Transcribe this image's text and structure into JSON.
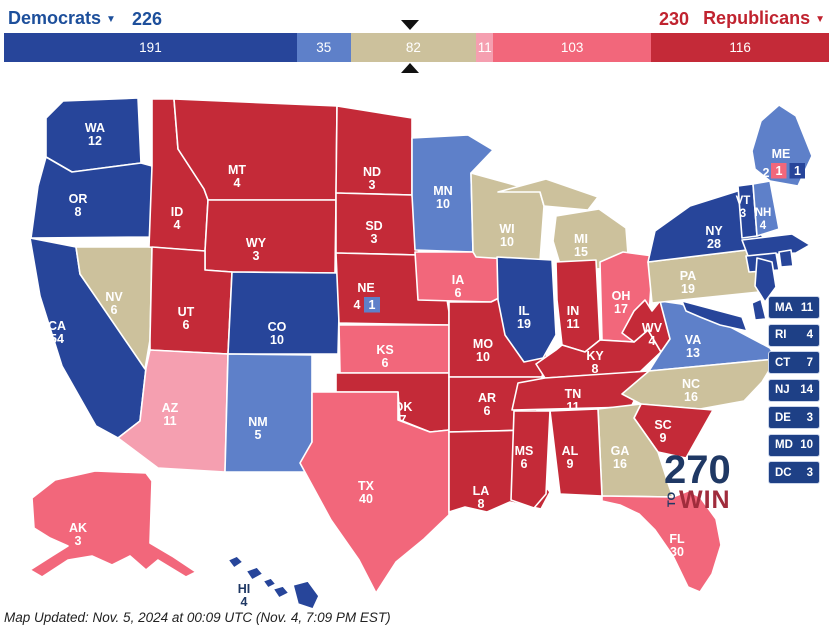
{
  "header": {
    "democrats_label": "Democrats",
    "democrats_total": "226",
    "republicans_total": "230",
    "republicans_label": "Republicans",
    "caret": "▼"
  },
  "colors": {
    "categories": {
      "safe-dem": "#27459a",
      "likely-dem": "#5e80c9",
      "tossup": "#ccc19c",
      "lean-rep": "#f59fb0",
      "likely-rep": "#f2677b",
      "safe-rep": "#c42a38"
    },
    "dem_text": "#1d4f9b",
    "rep_text": "#c0232f",
    "sidebar_box": "#1e4086",
    "sidebar_box_border": "#ccd6ea",
    "marker": "#111111",
    "state_label": "#ffffff",
    "hi_label": "#1f3864"
  },
  "bar": {
    "total": 538,
    "segments": [
      {
        "key": "safe-dem",
        "value": 191
      },
      {
        "key": "likely-dem",
        "value": 35
      },
      {
        "key": "tossup",
        "value": 82
      },
      {
        "key": "lean-rep",
        "value": 11
      },
      {
        "key": "likely-rep",
        "value": 103
      },
      {
        "key": "safe-rep",
        "value": 116
      }
    ]
  },
  "map": {
    "states": [
      {
        "abbr": "WA",
        "ev": "12",
        "category": "safe-dem"
      },
      {
        "abbr": "OR",
        "ev": "8",
        "category": "safe-dem"
      },
      {
        "abbr": "CA",
        "ev": "54",
        "category": "safe-dem"
      },
      {
        "abbr": "NV",
        "ev": "6",
        "category": "tossup"
      },
      {
        "abbr": "ID",
        "ev": "4",
        "category": "safe-rep"
      },
      {
        "abbr": "MT",
        "ev": "4",
        "category": "safe-rep"
      },
      {
        "abbr": "WY",
        "ev": "3",
        "category": "safe-rep"
      },
      {
        "abbr": "UT",
        "ev": "6",
        "category": "safe-rep"
      },
      {
        "abbr": "CO",
        "ev": "10",
        "category": "safe-dem"
      },
      {
        "abbr": "AZ",
        "ev": "11",
        "category": "lean-rep"
      },
      {
        "abbr": "NM",
        "ev": "5",
        "category": "likely-dem"
      },
      {
        "abbr": "ND",
        "ev": "3",
        "category": "safe-rep"
      },
      {
        "abbr": "SD",
        "ev": "3",
        "category": "safe-rep"
      },
      {
        "abbr": "NE",
        "ev": "4",
        "category": "safe-rep",
        "custom_ev": true
      },
      {
        "abbr": "KS",
        "ev": "6",
        "category": "likely-rep"
      },
      {
        "abbr": "OK",
        "ev": "7",
        "category": "safe-rep"
      },
      {
        "abbr": "TX",
        "ev": "40",
        "category": "likely-rep"
      },
      {
        "abbr": "MN",
        "ev": "10",
        "category": "likely-dem"
      },
      {
        "abbr": "IA",
        "ev": "6",
        "category": "likely-rep"
      },
      {
        "abbr": "MO",
        "ev": "10",
        "category": "safe-rep"
      },
      {
        "abbr": "AR",
        "ev": "6",
        "category": "safe-rep"
      },
      {
        "abbr": "LA",
        "ev": "8",
        "category": "safe-rep"
      },
      {
        "abbr": "WI",
        "ev": "10",
        "category": "tossup"
      },
      {
        "abbr": "MI",
        "ev": "15",
        "category": "tossup"
      },
      {
        "abbr": "IL",
        "ev": "19",
        "category": "safe-dem"
      },
      {
        "abbr": "IN",
        "ev": "11",
        "category": "safe-rep"
      },
      {
        "abbr": "OH",
        "ev": "17",
        "category": "likely-rep"
      },
      {
        "abbr": "KY",
        "ev": "8",
        "category": "safe-rep"
      },
      {
        "abbr": "TN",
        "ev": "11",
        "category": "safe-rep"
      },
      {
        "abbr": "WV",
        "ev": "4",
        "category": "safe-rep"
      },
      {
        "abbr": "VA",
        "ev": "13",
        "category": "likely-dem"
      },
      {
        "abbr": "NC",
        "ev": "16",
        "category": "tossup"
      },
      {
        "abbr": "SC",
        "ev": "9",
        "category": "safe-rep"
      },
      {
        "abbr": "GA",
        "ev": "16",
        "category": "tossup"
      },
      {
        "abbr": "AL",
        "ev": "9",
        "category": "safe-rep"
      },
      {
        "abbr": "MS",
        "ev": "6",
        "category": "safe-rep"
      },
      {
        "abbr": "FL",
        "ev": "30",
        "category": "likely-rep"
      },
      {
        "abbr": "PA",
        "ev": "19",
        "category": "tossup"
      },
      {
        "abbr": "NY",
        "ev": "28",
        "category": "safe-dem"
      },
      {
        "abbr": "VT",
        "ev": "3",
        "category": "safe-dem"
      },
      {
        "abbr": "NH",
        "ev": "4",
        "category": "likely-dem"
      },
      {
        "abbr": "ME",
        "ev": "2",
        "category": "likely-dem",
        "custom_ev": true
      },
      {
        "abbr": "AK",
        "ev": "3",
        "category": "likely-rep"
      },
      {
        "abbr": "HI",
        "ev": "4",
        "category": "safe-dem",
        "label_color": "hi"
      },
      {
        "abbr": "MA",
        "ev": "11",
        "category": "safe-dem",
        "show_label": false
      },
      {
        "abbr": "CT",
        "ev": "7",
        "category": "safe-dem",
        "show_label": false
      },
      {
        "abbr": "RI",
        "ev": "4",
        "category": "safe-dem",
        "show_label": false
      },
      {
        "abbr": "NJ",
        "ev": "14",
        "category": "safe-dem",
        "show_label": false
      },
      {
        "abbr": "DE",
        "ev": "3",
        "category": "safe-dem",
        "show_label": false
      },
      {
        "abbr": "MD",
        "ev": "10",
        "category": "safe-dem",
        "show_label": false
      }
    ],
    "districts": [
      {
        "id": "ME-AL",
        "text": "2",
        "category": "likely-dem",
        "kind": "label"
      },
      {
        "id": "ME-02",
        "text": "1",
        "category": "likely-rep",
        "kind": "box"
      },
      {
        "id": "ME-01",
        "text": "1",
        "category": "safe-dem",
        "kind": "box"
      },
      {
        "id": "NE-AL",
        "text": "4",
        "category": "safe-rep",
        "kind": "label"
      },
      {
        "id": "NE-02",
        "text": "1",
        "category": "likely-dem",
        "kind": "box"
      }
    ]
  },
  "sidebar_states": [
    {
      "abbr": "MA",
      "ev": "11"
    },
    {
      "abbr": "RI",
      "ev": "4"
    },
    {
      "abbr": "CT",
      "ev": "7"
    },
    {
      "abbr": "NJ",
      "ev": "14"
    },
    {
      "abbr": "DE",
      "ev": "3"
    },
    {
      "abbr": "MD",
      "ev": "10"
    },
    {
      "abbr": "DC",
      "ev": "3"
    }
  ],
  "logo": {
    "number": "270",
    "to": "TO",
    "win": "WIN"
  },
  "footer": {
    "text": "Map Updated: Nov. 5, 2024 at 00:09 UTC (Nov. 4, 7:09 PM EST)"
  }
}
